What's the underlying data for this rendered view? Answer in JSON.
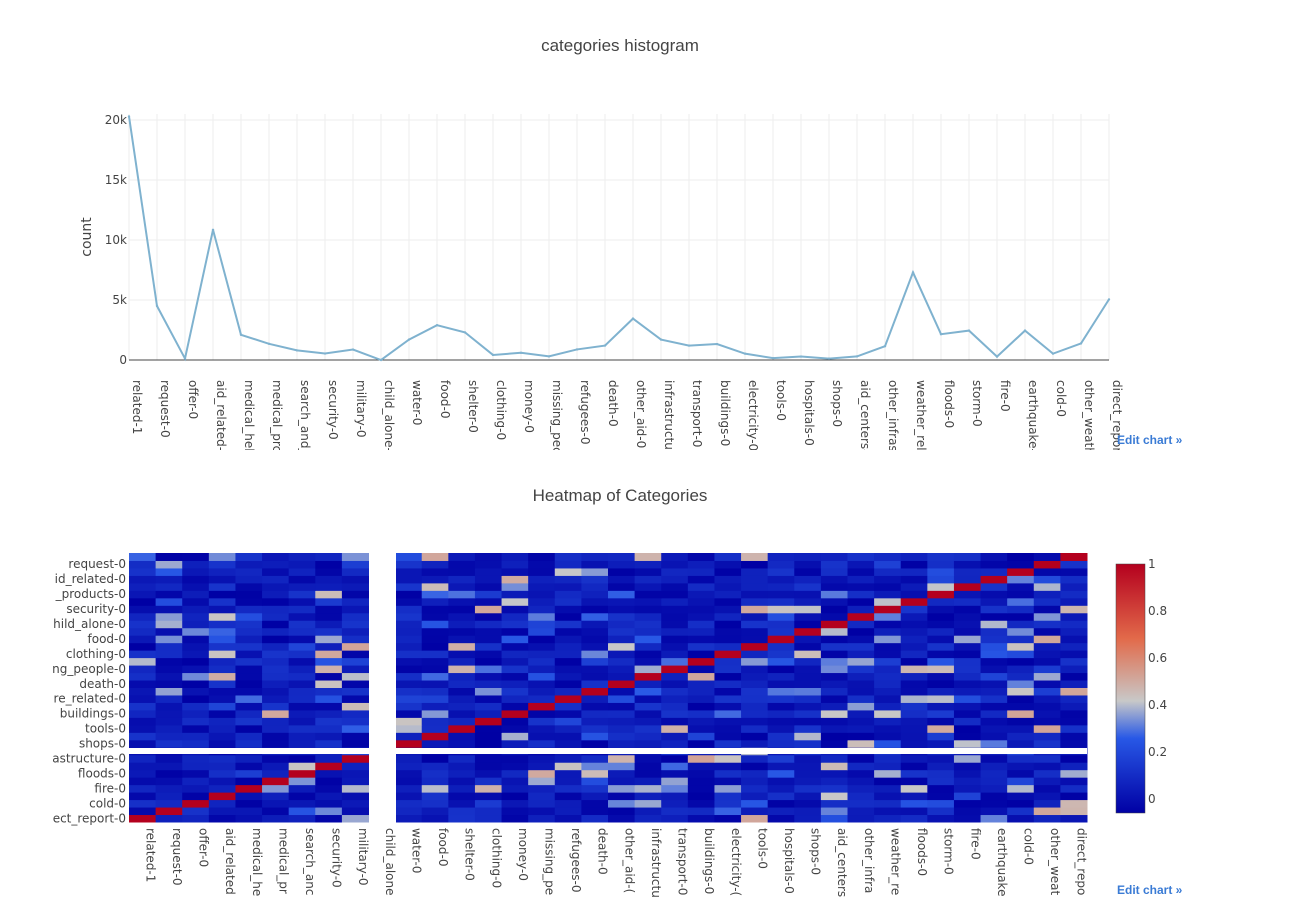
{
  "histogram": {
    "title": "categories histogram",
    "edit_label": "Edit chart »",
    "line_color": "#7fb2cf"
  },
  "heatmap": {
    "title": "Heatmap of Categories",
    "edit_label": "Edit chart »",
    "colorscale": [
      "#0000a4",
      "#2858e6",
      "#c8c8c8",
      "#e26a4a",
      "#b4001e"
    ]
  },
  "chart_data": [
    {
      "type": "line",
      "title": "categories histogram",
      "xlabel": "",
      "ylabel": "count",
      "ylim": [
        0,
        20500
      ],
      "yticks": [
        0,
        5000,
        10000,
        15000,
        20000
      ],
      "ytick_labels": [
        "0",
        "5k",
        "10k",
        "15k",
        "20k"
      ],
      "grid": true,
      "categories": [
        "related-1",
        "request-0",
        "offer-0",
        "aid_related-",
        "medical_hel",
        "medical_prc",
        "search_and_",
        "security-0",
        "military-0",
        "child_alone-",
        "water-0",
        "food-0",
        "shelter-0",
        "clothing-0",
        "money-0",
        "missing_pec",
        "refugees-0",
        "death-0",
        "other_aid-0",
        "infrastructu",
        "transport-0",
        "buildings-0",
        "electricity-0",
        "tools-0",
        "hospitals-0",
        "shops-0",
        "aid_centers-",
        "other_infras",
        "weather_rel",
        "floods-0",
        "storm-0",
        "fire-0",
        "earthquake-",
        "cold-0",
        "other_weath",
        "direct_repor"
      ],
      "values": [
        20300,
        4500,
        120,
        10850,
        2100,
        1350,
        800,
        540,
        870,
        0,
        1700,
        2900,
        2300,
        420,
        600,
        300,
        880,
        1200,
        3450,
        1700,
        1200,
        1330,
        530,
        160,
        290,
        120,
        300,
        1150,
        7300,
        2150,
        2450,
        280,
        2450,
        530,
        1380,
        5050
      ]
    },
    {
      "type": "heatmap",
      "title": "Heatmap of Categories",
      "x_tick_labels": [
        "related-1",
        "request-0",
        "offer-0",
        "aid_related",
        "medical_he",
        "medical_pr",
        "search_anc",
        "security-0",
        "military-0",
        "child_alone",
        "water-0",
        "food-0",
        "shelter-0",
        "clothing-0",
        "money-0",
        "missing_pe",
        "refugees-0",
        "death-0",
        "other_aid-(",
        "infrastructu",
        "transport-0",
        "buildings-0",
        "electricity-(",
        "tools-0",
        "hospitals-0",
        "shops-0",
        "aid_centers",
        "other_infra",
        "weather_re",
        "floods-0",
        "storm-0",
        "fire-0",
        "earthquake",
        "cold-0",
        "other_weat",
        "direct_repo"
      ],
      "y_tick_labels": [
        "ect_report-0",
        "cold-0",
        "fire-0",
        "floods-0",
        "astructure-0",
        "shops-0",
        "tools-0",
        "buildings-0",
        "re_related-0",
        "death-0",
        "ng_people-0",
        "clothing-0",
        "food-0",
        "hild_alone-0",
        "security-0",
        "_products-0",
        "id_related-0",
        "request-0"
      ],
      "colorbar": {
        "min": 0,
        "max": 1,
        "ticks": [
          0,
          0.2,
          0.4,
          0.6,
          0.8,
          1
        ],
        "tick_labels": [
          "0",
          "0.2",
          "0.4",
          "0.6",
          "0.8",
          "1"
        ]
      },
      "n_rows": 36,
      "n_cols": 36,
      "empty_column": "child_alone",
      "correlation_values": "diagonal of ones; off-diagonal values mostly between 0 and 0.25 with a few stronger correlations near 0.4-0.6"
    }
  ]
}
